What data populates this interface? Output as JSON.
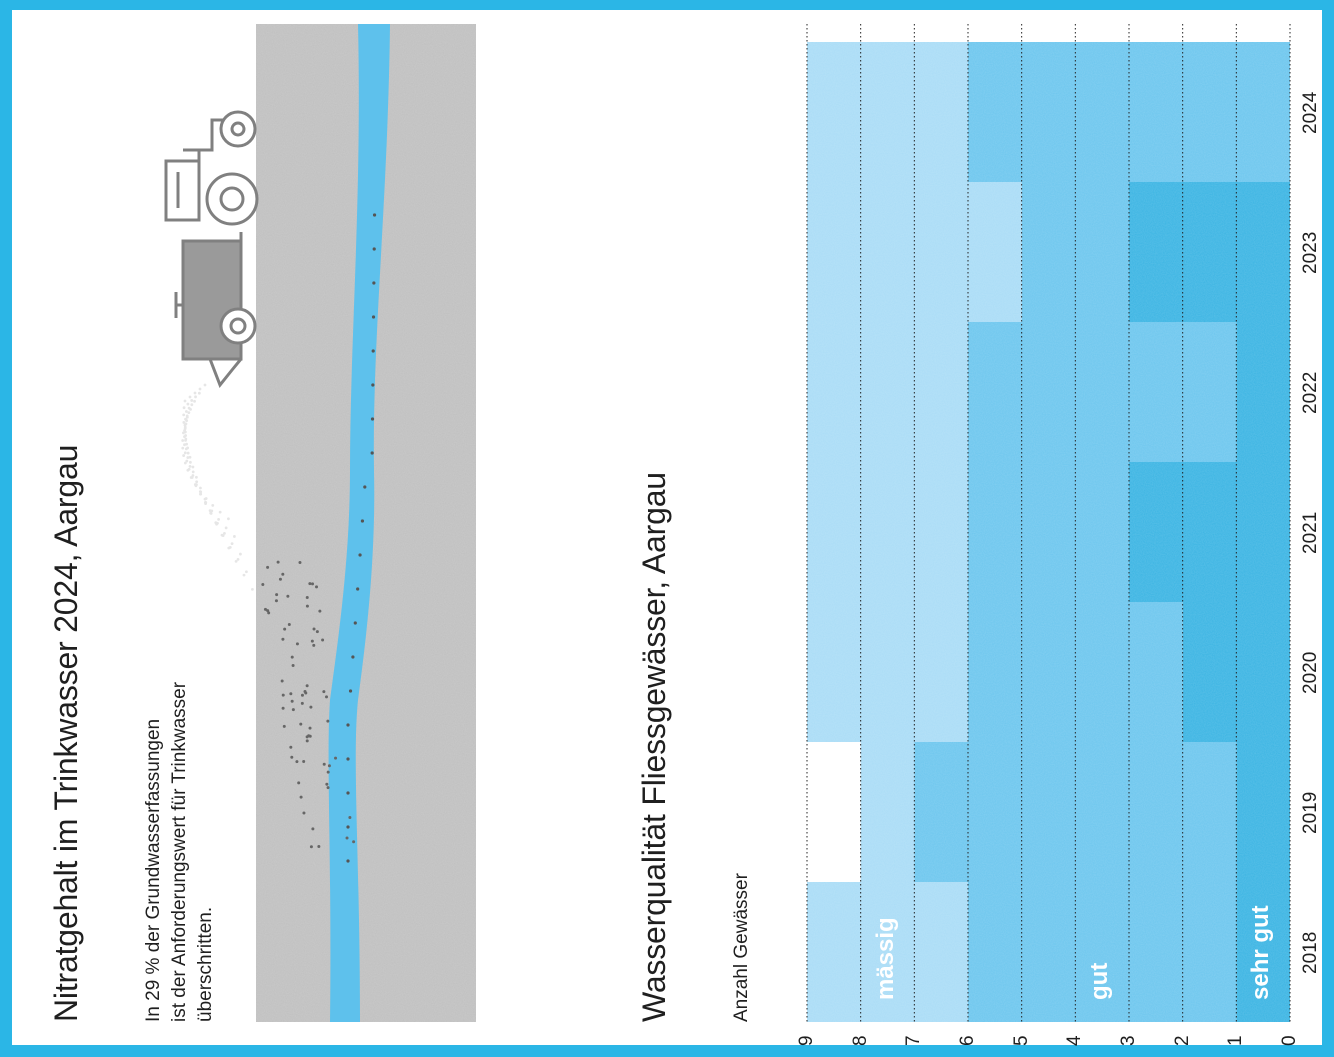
{
  "panel_top": {
    "title": "Nitratgehalt im Trinkwasser 2024, Aargau",
    "text": "In 29 % der Grundwasserfassungen\nist der Anforderungswert für Trinkwasser\nüberschritten."
  },
  "panel_bottom": {
    "title": "Wasserqualität Fliessgewässer, Aargau",
    "ylabel": "Anzahl Gewässer"
  },
  "colors": {
    "frame": "#2bb6e6",
    "sehr_gut": "#3ab4e3",
    "gut": "#6cc6ee",
    "maessig": "#a9dcf6",
    "river": "#5ec1ec",
    "ground": "#bfbfbf"
  },
  "chart_data": {
    "type": "bar",
    "stacked": true,
    "orientation": "rotated-90",
    "categories": [
      "2018",
      "2019",
      "2020",
      "2021",
      "2022",
      "2023",
      "2024"
    ],
    "series": [
      {
        "name": "sehr gut",
        "values": [
          1,
          1,
          2,
          3,
          1,
          3,
          0
        ]
      },
      {
        "name": "gut",
        "values": [
          5,
          6,
          4,
          3,
          5,
          2,
          6
        ]
      },
      {
        "name": "mässig",
        "values": [
          3,
          1,
          3,
          3,
          3,
          4,
          3
        ]
      }
    ],
    "ylabel": "Anzahl Gewässer",
    "ylim": [
      0,
      9
    ],
    "yticks": [
      "0",
      "1",
      "2",
      "3",
      "4",
      "5",
      "6",
      "7",
      "8",
      "9"
    ],
    "grid": true
  }
}
